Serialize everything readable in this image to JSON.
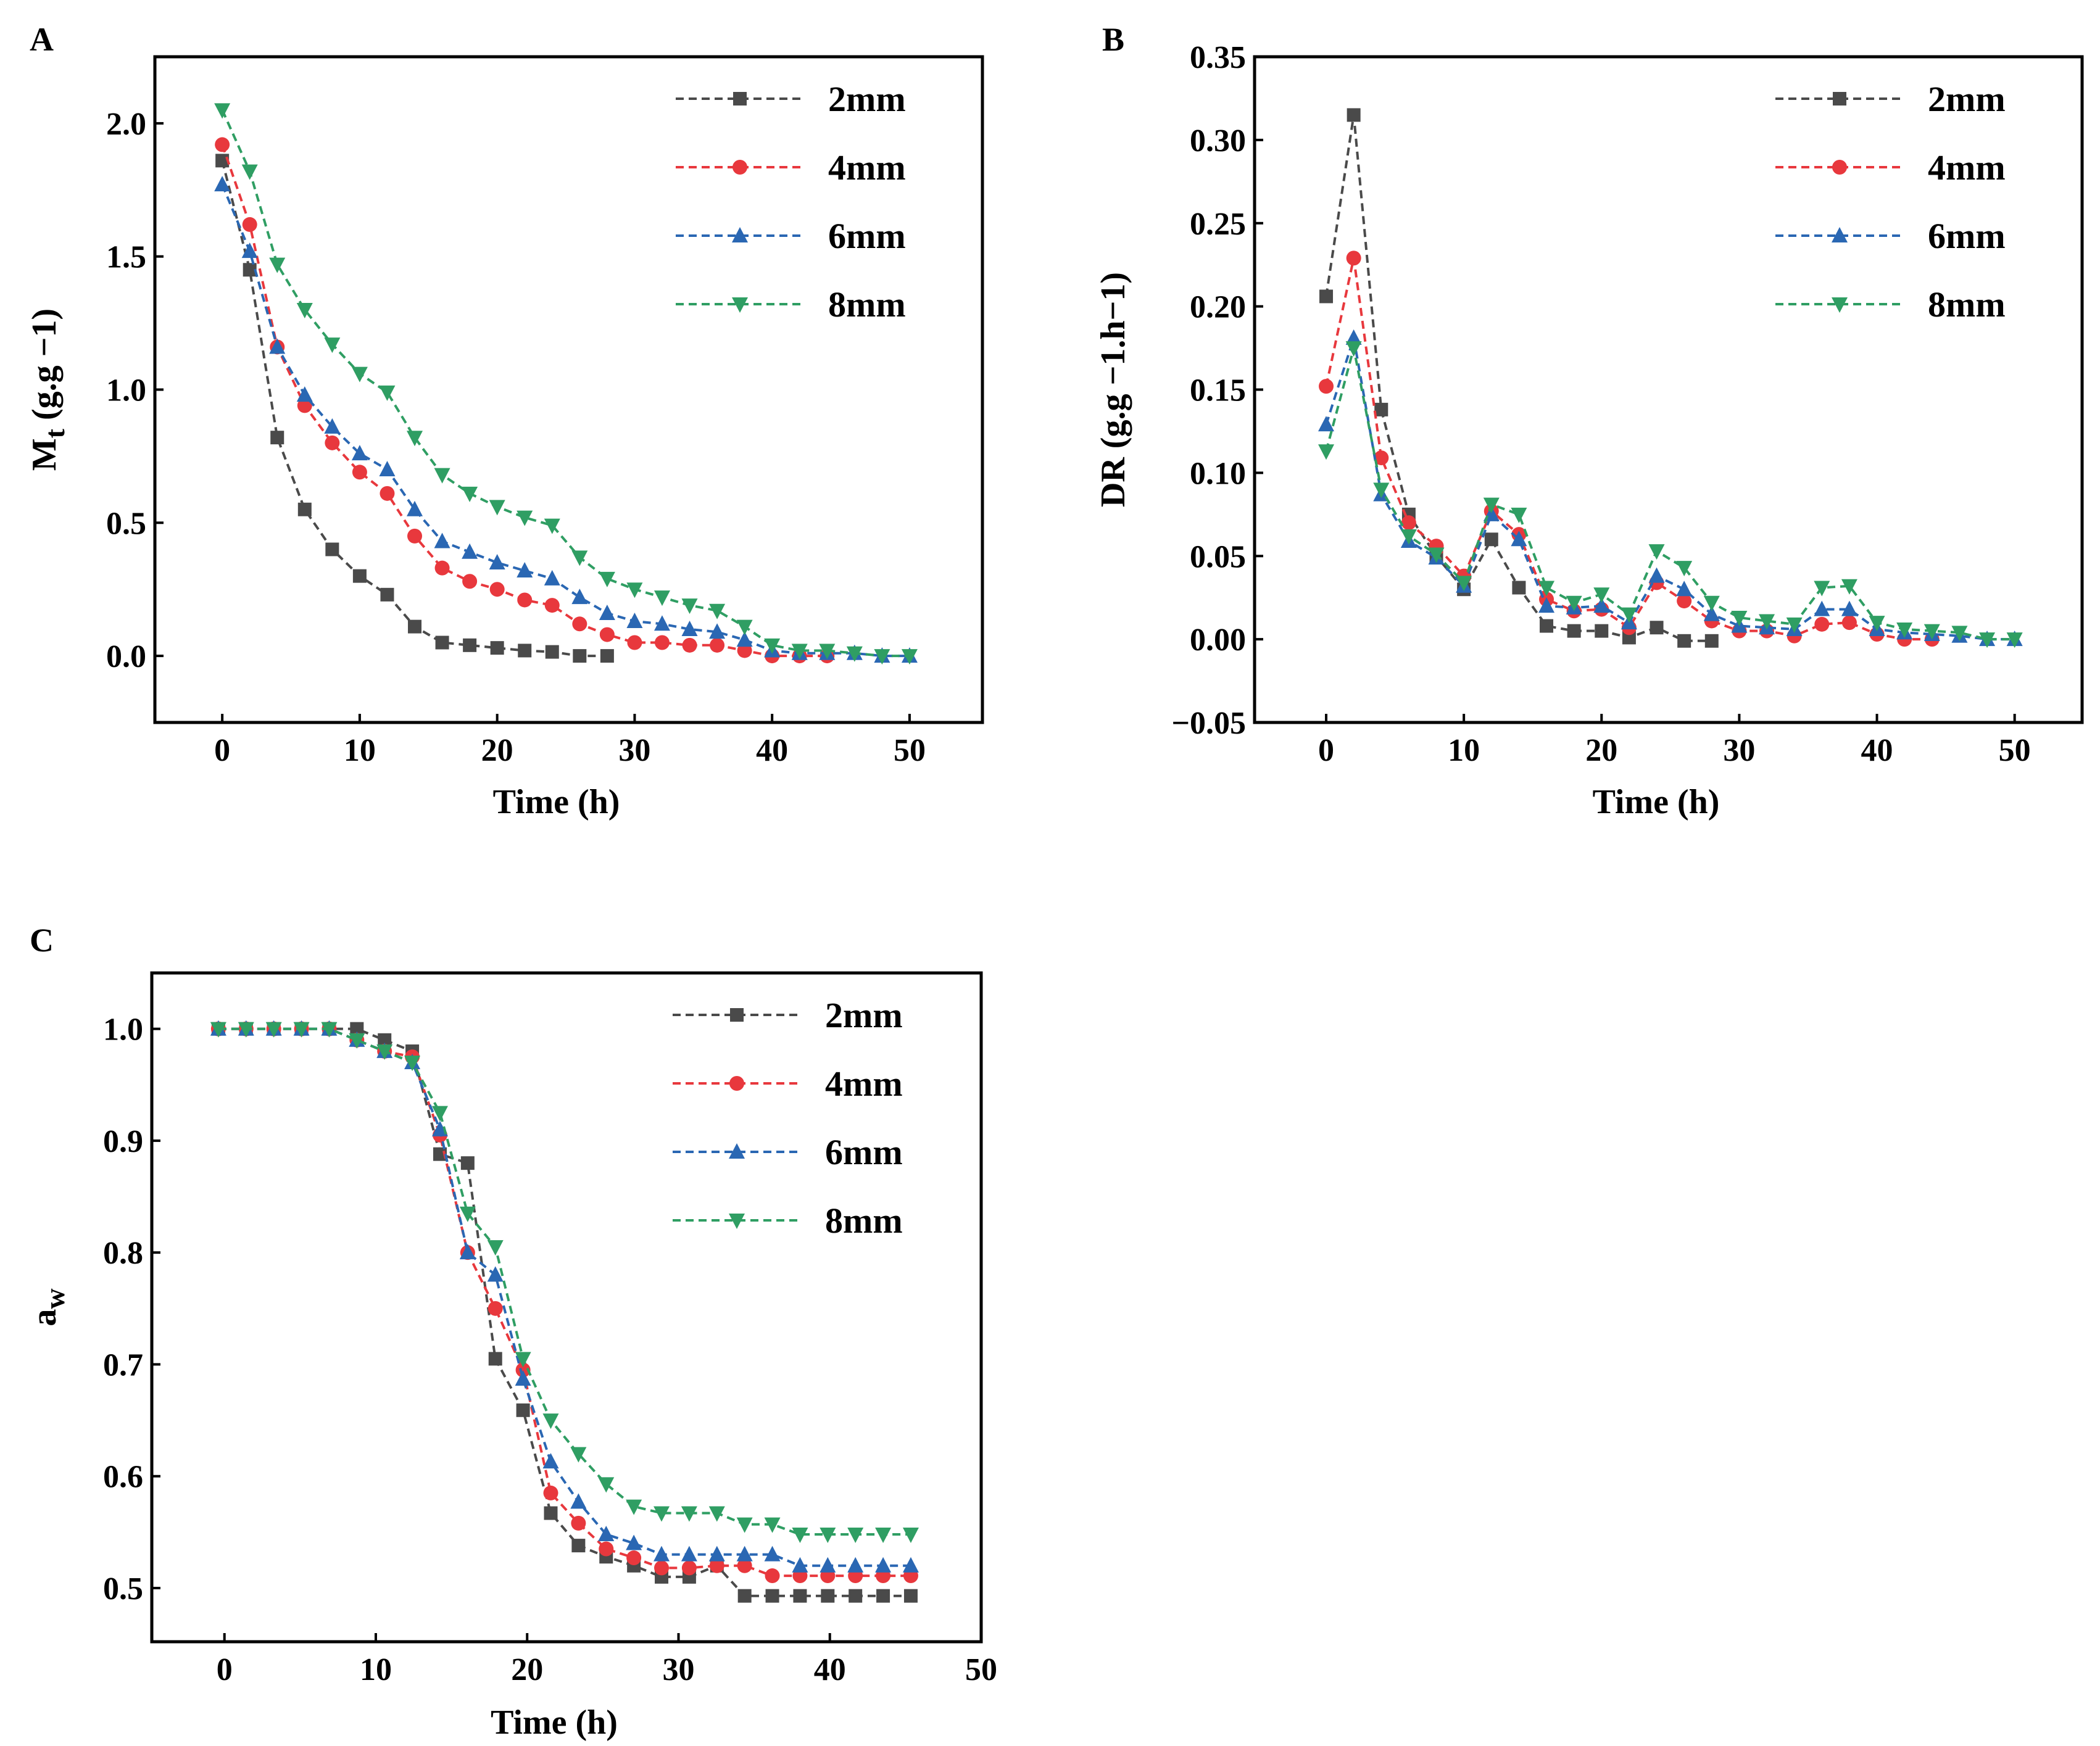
{
  "legend_labels": [
    "2mm",
    "4mm",
    "6mm",
    "8mm"
  ],
  "series_colors": [
    "#4a4a4a",
    "#e8383d",
    "#2a67b3",
    "#2f9e63"
  ],
  "series_markers": [
    "square",
    "circle",
    "triangle-up",
    "triangle-down"
  ],
  "chart_data": [
    {
      "panel": "A",
      "type": "line",
      "xlabel": "Time (h)",
      "ylabel_main": "M",
      "ylabel_sub": "t",
      "ylabel_rest": " (g.g −1)",
      "xlim": [
        -4.9,
        55.3
      ],
      "ylim": [
        -0.25,
        2.25
      ],
      "xticks": [
        0,
        10,
        20,
        30,
        40,
        50
      ],
      "xtick_labels": [
        "0",
        "10",
        "20",
        "30",
        "40",
        "50"
      ],
      "yticks": [
        0,
        0.5,
        1.0,
        1.5,
        2.0
      ],
      "ytick_labels": [
        "0.0",
        "0.5",
        "1.0",
        "1.5",
        "2.0"
      ],
      "legend": "top-right",
      "grid": false,
      "series": [
        {
          "name": "2mm",
          "x": [
            0,
            2,
            4,
            6,
            8,
            10,
            12,
            14,
            16,
            18,
            20,
            22,
            24,
            26,
            28
          ],
          "y": [
            1.86,
            1.45,
            0.82,
            0.55,
            0.4,
            0.3,
            0.23,
            0.11,
            0.05,
            0.04,
            0.03,
            0.02,
            0.015,
            0.0,
            0.0
          ]
        },
        {
          "name": "4mm",
          "x": [
            0,
            2,
            4,
            6,
            8,
            10,
            12,
            14,
            16,
            18,
            20,
            22,
            24,
            26,
            28,
            30,
            32,
            34,
            36,
            38,
            40,
            42,
            44
          ],
          "y": [
            1.92,
            1.62,
            1.16,
            0.94,
            0.8,
            0.69,
            0.61,
            0.45,
            0.33,
            0.28,
            0.25,
            0.21,
            0.19,
            0.12,
            0.08,
            0.05,
            0.05,
            0.04,
            0.04,
            0.02,
            0.0,
            0.0,
            0.0
          ]
        },
        {
          "name": "6mm",
          "x": [
            0,
            2,
            4,
            6,
            8,
            10,
            12,
            14,
            16,
            18,
            20,
            22,
            24,
            26,
            28,
            30,
            32,
            34,
            36,
            38,
            40,
            42,
            44,
            46,
            48,
            50
          ],
          "y": [
            1.77,
            1.52,
            1.16,
            0.98,
            0.86,
            0.76,
            0.7,
            0.55,
            0.43,
            0.39,
            0.35,
            0.32,
            0.29,
            0.22,
            0.16,
            0.13,
            0.12,
            0.1,
            0.09,
            0.06,
            0.02,
            0.01,
            0.01,
            0.01,
            0.0,
            0.0
          ]
        },
        {
          "name": "8mm",
          "x": [
            0,
            2,
            4,
            6,
            8,
            10,
            12,
            14,
            16,
            18,
            20,
            22,
            24,
            26,
            28,
            30,
            32,
            34,
            36,
            38,
            40,
            42,
            44,
            46,
            48,
            50
          ],
          "y": [
            2.05,
            1.82,
            1.47,
            1.3,
            1.17,
            1.06,
            0.99,
            0.82,
            0.68,
            0.61,
            0.56,
            0.52,
            0.49,
            0.37,
            0.29,
            0.25,
            0.22,
            0.19,
            0.17,
            0.11,
            0.04,
            0.02,
            0.02,
            0.01,
            0.0,
            0.0
          ]
        }
      ]
    },
    {
      "panel": "B",
      "type": "line",
      "xlabel": "Time (h)",
      "ylabel_main": "DR (g.g −1.h−1)",
      "ylabel_sub": "",
      "ylabel_rest": "",
      "xlim": [
        -5.2,
        54.9
      ],
      "ylim": [
        -0.05,
        0.35
      ],
      "xticks": [
        0,
        10,
        20,
        30,
        40,
        50
      ],
      "xtick_labels": [
        "0",
        "10",
        "20",
        "30",
        "40",
        "50"
      ],
      "yticks": [
        -0.05,
        0,
        0.05,
        0.1,
        0.15,
        0.2,
        0.25,
        0.3,
        0.35
      ],
      "ytick_labels": [
        "−0.05",
        "0.00",
        "0.05",
        "0.10",
        "0.15",
        "0.20",
        "0.25",
        "0.30",
        "0.35"
      ],
      "legend": "top-right",
      "grid": false,
      "series": [
        {
          "name": "2mm",
          "x": [
            0,
            2,
            4,
            6,
            8,
            10,
            12,
            14,
            16,
            18,
            20,
            22,
            24,
            26,
            28
          ],
          "y": [
            0.206,
            0.315,
            0.138,
            0.075,
            0.05,
            0.03,
            0.06,
            0.031,
            0.008,
            0.005,
            0.005,
            0.001,
            0.007,
            -0.001,
            -0.001
          ]
        },
        {
          "name": "4mm",
          "x": [
            0,
            2,
            4,
            6,
            8,
            10,
            12,
            14,
            16,
            18,
            20,
            22,
            24,
            26,
            28,
            30,
            32,
            34,
            36,
            38,
            40,
            42,
            44
          ],
          "y": [
            0.152,
            0.229,
            0.109,
            0.07,
            0.056,
            0.038,
            0.077,
            0.063,
            0.024,
            0.017,
            0.018,
            0.007,
            0.034,
            0.023,
            0.011,
            0.005,
            0.005,
            0.002,
            0.009,
            0.01,
            0.003,
            0.0,
            0.0
          ]
        },
        {
          "name": "6mm",
          "x": [
            0,
            2,
            4,
            6,
            8,
            10,
            12,
            14,
            16,
            18,
            20,
            22,
            24,
            26,
            28,
            30,
            32,
            34,
            36,
            38,
            40,
            42,
            44,
            46,
            48,
            50
          ],
          "y": [
            0.129,
            0.181,
            0.087,
            0.059,
            0.049,
            0.032,
            0.075,
            0.06,
            0.02,
            0.019,
            0.02,
            0.01,
            0.038,
            0.03,
            0.015,
            0.008,
            0.007,
            0.006,
            0.018,
            0.018,
            0.006,
            0.004,
            0.003,
            0.002,
            0.0,
            0.0
          ]
        },
        {
          "name": "8mm",
          "x": [
            0,
            2,
            4,
            6,
            8,
            10,
            12,
            14,
            16,
            18,
            20,
            22,
            24,
            26,
            28,
            30,
            32,
            34,
            36,
            38,
            40,
            42,
            44,
            46,
            48,
            50
          ],
          "y": [
            0.113,
            0.175,
            0.09,
            0.062,
            0.051,
            0.034,
            0.081,
            0.075,
            0.031,
            0.022,
            0.027,
            0.015,
            0.053,
            0.043,
            0.022,
            0.013,
            0.011,
            0.009,
            0.031,
            0.032,
            0.01,
            0.006,
            0.005,
            0.004,
            0.0,
            0.0
          ]
        }
      ]
    },
    {
      "panel": "C",
      "type": "line",
      "xlabel": "Time (h)",
      "ylabel_main": "a",
      "ylabel_sub": "w",
      "ylabel_rest": "",
      "xlim": [
        -4.8,
        50
      ],
      "ylim": [
        0.452,
        1.05
      ],
      "xticks": [
        0,
        10,
        20,
        30,
        40,
        50
      ],
      "xtick_labels": [
        "0",
        "10",
        "20",
        "30",
        "40",
        "50"
      ],
      "yticks": [
        0.5,
        0.6,
        0.7,
        0.8,
        0.9,
        1.0
      ],
      "ytick_labels": [
        "0.5",
        "0.6",
        "0.7",
        "0.8",
        "0.9",
        "1.0"
      ],
      "legend": "top-right",
      "grid": false,
      "x_shared": [
        -0.4,
        1.43,
        3.26,
        5.09,
        6.92,
        8.75,
        10.58,
        12.41,
        14.24,
        16.07,
        17.9,
        19.73,
        21.56,
        23.39,
        25.22,
        27.05,
        28.88,
        30.71,
        32.54,
        34.37,
        36.2,
        38.03,
        39.86,
        41.69,
        43.52,
        45.35
      ],
      "series": [
        {
          "name": "2mm",
          "y": [
            1.0,
            1.0,
            1.0,
            1.0,
            1.0,
            1.0,
            0.99,
            0.98,
            0.888,
            0.88,
            0.705,
            0.659,
            0.567,
            0.538,
            0.528,
            0.52,
            0.51,
            0.51,
            0.52,
            0.493,
            0.493,
            0.493,
            0.493,
            0.493,
            0.493,
            0.493
          ]
        },
        {
          "name": "4mm",
          "y": [
            1.0,
            1.0,
            1.0,
            1.0,
            1.0,
            0.99,
            0.98,
            0.975,
            0.905,
            0.8,
            0.75,
            0.695,
            0.585,
            0.558,
            0.535,
            0.527,
            0.518,
            0.518,
            0.52,
            0.52,
            0.511,
            0.511,
            0.511,
            0.511,
            0.511,
            0.511
          ]
        },
        {
          "name": "6mm",
          "y": [
            1.0,
            1.0,
            1.0,
            1.0,
            1.0,
            0.99,
            0.98,
            0.97,
            0.91,
            0.8,
            0.78,
            0.687,
            0.613,
            0.577,
            0.548,
            0.54,
            0.53,
            0.53,
            0.53,
            0.53,
            0.53,
            0.52,
            0.52,
            0.52,
            0.52,
            0.52
          ]
        },
        {
          "name": "8mm",
          "y": [
            1.0,
            1.0,
            1.0,
            1.0,
            1.0,
            0.99,
            0.98,
            0.97,
            0.925,
            0.835,
            0.805,
            0.705,
            0.65,
            0.62,
            0.593,
            0.573,
            0.567,
            0.567,
            0.567,
            0.557,
            0.557,
            0.548,
            0.548,
            0.548,
            0.548,
            0.548
          ]
        }
      ]
    }
  ]
}
